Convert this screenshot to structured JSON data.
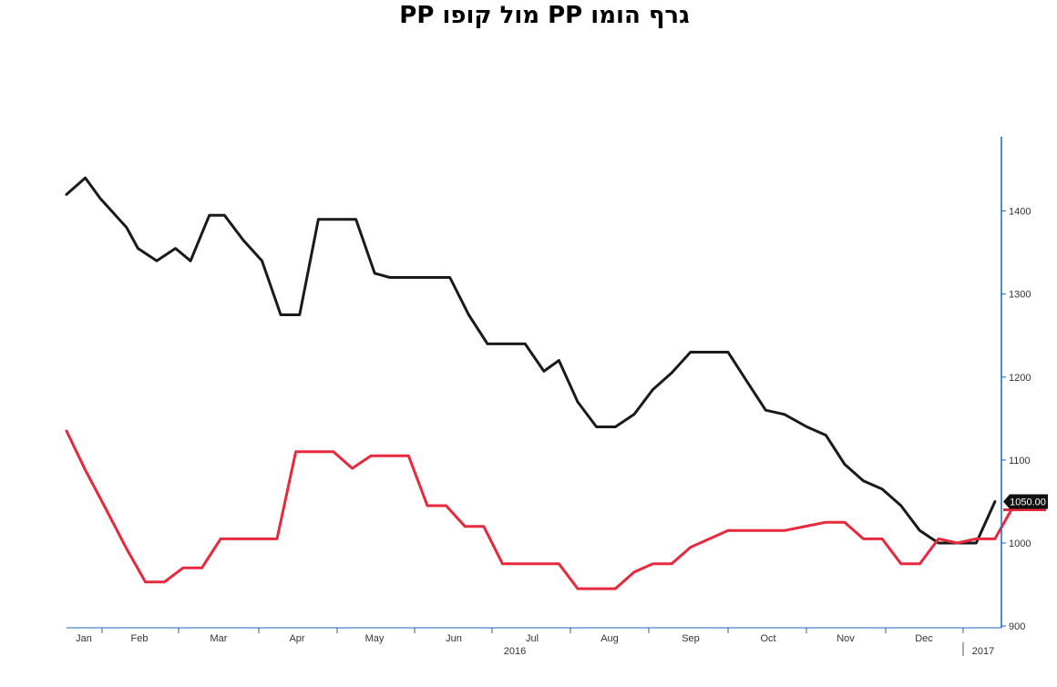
{
  "chart_data": {
    "type": "line",
    "title": "גרף הומו PP מול קופו PP",
    "x_axis": {
      "months": [
        "Jan",
        "Feb",
        "Mar",
        "Apr",
        "May",
        "Jun",
        "Jul",
        "Aug",
        "Sep",
        "Oct",
        "Nov",
        "Dec"
      ],
      "year_labels": [
        "2016",
        "2017"
      ]
    },
    "y_axis": {
      "ticks": [
        "900",
        "1000",
        "1100",
        "1200",
        "1300",
        "1400"
      ],
      "ylim": [
        900,
        1490
      ],
      "side": "right"
    },
    "last_value_label": "1050.00",
    "series": [
      {
        "color": "#1a1a1a",
        "points": [
          [
            0.0,
            1420
          ],
          [
            0.25,
            1440
          ],
          [
            0.45,
            1415
          ],
          [
            0.8,
            1380
          ],
          [
            0.95,
            1355
          ],
          [
            1.2,
            1340
          ],
          [
            1.45,
            1355
          ],
          [
            1.65,
            1340
          ],
          [
            1.9,
            1395
          ],
          [
            2.1,
            1395
          ],
          [
            2.35,
            1365
          ],
          [
            2.6,
            1340
          ],
          [
            2.85,
            1275
          ],
          [
            3.1,
            1275
          ],
          [
            3.35,
            1390
          ],
          [
            3.55,
            1390
          ],
          [
            3.85,
            1390
          ],
          [
            4.1,
            1325
          ],
          [
            4.3,
            1320
          ],
          [
            4.6,
            1320
          ],
          [
            5.1,
            1320
          ],
          [
            5.35,
            1275
          ],
          [
            5.6,
            1240
          ],
          [
            6.1,
            1240
          ],
          [
            6.35,
            1207
          ],
          [
            6.55,
            1220
          ],
          [
            6.8,
            1170
          ],
          [
            7.05,
            1140
          ],
          [
            7.3,
            1140
          ],
          [
            7.55,
            1155
          ],
          [
            7.8,
            1185
          ],
          [
            8.05,
            1205
          ],
          [
            8.3,
            1230
          ],
          [
            8.8,
            1230
          ],
          [
            9.05,
            1195
          ],
          [
            9.3,
            1160
          ],
          [
            9.55,
            1155
          ],
          [
            9.85,
            1140
          ],
          [
            10.1,
            1130
          ],
          [
            10.35,
            1095
          ],
          [
            10.6,
            1075
          ],
          [
            10.85,
            1065
          ],
          [
            11.1,
            1045
          ],
          [
            11.35,
            1015
          ],
          [
            11.6,
            1000
          ],
          [
            12.1,
            1000
          ],
          [
            12.35,
            1050
          ]
        ]
      },
      {
        "color": "#e8283c",
        "points": [
          [
            0.0,
            1135
          ],
          [
            0.25,
            1088
          ],
          [
            0.5,
            1045
          ],
          [
            0.8,
            993
          ],
          [
            1.05,
            953
          ],
          [
            1.3,
            953
          ],
          [
            1.55,
            970
          ],
          [
            1.8,
            970
          ],
          [
            2.05,
            1005
          ],
          [
            2.3,
            1005
          ],
          [
            2.8,
            1005
          ],
          [
            3.05,
            1110
          ],
          [
            3.3,
            1110
          ],
          [
            3.55,
            1110
          ],
          [
            3.8,
            1090
          ],
          [
            4.05,
            1105
          ],
          [
            4.55,
            1105
          ],
          [
            4.8,
            1045
          ],
          [
            5.05,
            1045
          ],
          [
            5.3,
            1020
          ],
          [
            5.55,
            1020
          ],
          [
            5.8,
            975
          ],
          [
            6.55,
            975
          ],
          [
            6.8,
            945
          ],
          [
            7.3,
            945
          ],
          [
            7.55,
            965
          ],
          [
            7.8,
            975
          ],
          [
            8.05,
            975
          ],
          [
            8.3,
            995
          ],
          [
            8.8,
            1015
          ],
          [
            9.55,
            1015
          ],
          [
            10.1,
            1025
          ],
          [
            10.35,
            1025
          ],
          [
            10.6,
            1005
          ],
          [
            10.85,
            1005
          ],
          [
            11.1,
            975
          ],
          [
            11.35,
            975
          ],
          [
            11.6,
            1005
          ],
          [
            11.85,
            1000
          ],
          [
            12.1,
            1005
          ],
          [
            12.35,
            1005
          ],
          [
            12.6,
            1045
          ]
        ]
      }
    ]
  }
}
